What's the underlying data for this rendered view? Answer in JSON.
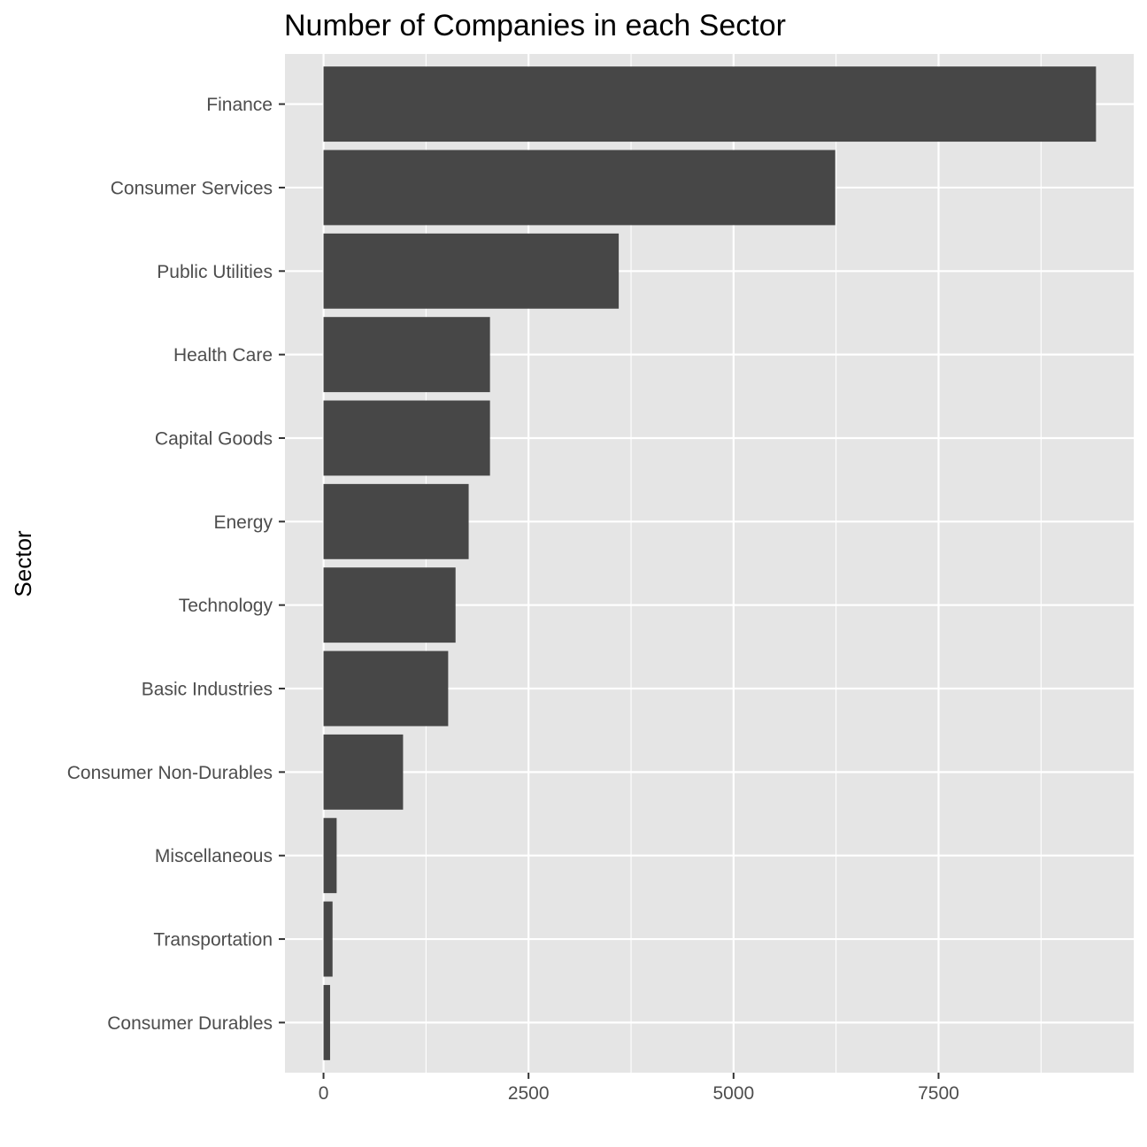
{
  "chart_data": {
    "type": "bar",
    "orientation": "horizontal",
    "title": "Number of Companies in each Sector",
    "xlabel": "",
    "ylabel": "Sector",
    "categories": [
      "Finance",
      "Consumer Services",
      "Public Utilities",
      "Health Care",
      "Capital Goods",
      "Energy",
      "Technology",
      "Basic Industries",
      "Consumer Non-Durables",
      "Miscellaneous",
      "Transportation",
      "Consumer Durables"
    ],
    "values": [
      9420,
      6240,
      3600,
      2030,
      2030,
      1770,
      1610,
      1520,
      970,
      160,
      110,
      80
    ],
    "xlim": [
      -470,
      9880
    ],
    "x_ticks": [
      0,
      2500,
      5000,
      7500
    ],
    "x_tick_labels": [
      "0",
      "2500",
      "5000",
      "7500"
    ],
    "grid": true,
    "legend": "none",
    "colors": {
      "bar": "#474747",
      "panel": "#e5e5e5",
      "grid": "#ffffff",
      "tick_text": "#4d4d4d",
      "tick_mark": "#333333"
    }
  }
}
